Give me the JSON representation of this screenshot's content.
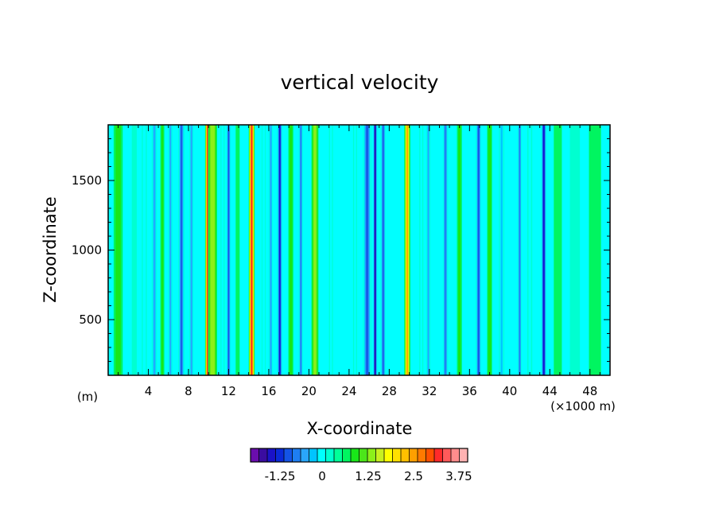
{
  "chart_data": {
    "type": "heatmap",
    "title": "vertical velocity",
    "xlabel": "X-coordinate",
    "ylabel": "Z-coordinate",
    "x_unit_left": "(m)",
    "x_unit_right": "(×1000 m)",
    "xlim": [
      0,
      50
    ],
    "ylim": [
      100,
      1900
    ],
    "x_ticks": [
      4,
      8,
      12,
      16,
      20,
      24,
      28,
      32,
      36,
      40,
      44,
      48
    ],
    "y_ticks": [
      500,
      1000,
      1500
    ],
    "features": [
      {
        "x": 1.0,
        "width": 0.9,
        "value": 0.6
      },
      {
        "x": 2.6,
        "width": 0.5,
        "value": -0.3
      },
      {
        "x": 3.6,
        "width": 0.5,
        "value": -0.6
      },
      {
        "x": 4.6,
        "width": 0.5,
        "value": -1.0
      },
      {
        "x": 5.4,
        "width": 0.4,
        "value": 0.5
      },
      {
        "x": 6.2,
        "width": 0.4,
        "value": -1.0
      },
      {
        "x": 7.3,
        "width": 0.6,
        "value": -1.5
      },
      {
        "x": 8.3,
        "width": 0.4,
        "value": -1.1
      },
      {
        "x": 9.9,
        "width": 0.5,
        "value": 3.2
      },
      {
        "x": 10.4,
        "width": 0.9,
        "value": 1.4
      },
      {
        "x": 11.4,
        "width": 0.4,
        "value": -0.6
      },
      {
        "x": 12.0,
        "width": 0.4,
        "value": -1.7
      },
      {
        "x": 12.9,
        "width": 0.4,
        "value": 0.3
      },
      {
        "x": 14.3,
        "width": 0.6,
        "value": 3.2
      },
      {
        "x": 15.5,
        "width": 0.4,
        "value": -0.7
      },
      {
        "x": 16.2,
        "width": 0.4,
        "value": -1.1
      },
      {
        "x": 17.1,
        "width": 0.5,
        "value": -2.0
      },
      {
        "x": 18.2,
        "width": 0.5,
        "value": 0.6
      },
      {
        "x": 19.2,
        "width": 0.4,
        "value": -1.4
      },
      {
        "x": 20.6,
        "width": 0.7,
        "value": 1.2
      },
      {
        "x": 22.2,
        "width": 0.4,
        "value": -0.5
      },
      {
        "x": 23.4,
        "width": 0.4,
        "value": 0.2
      },
      {
        "x": 24.6,
        "width": 0.4,
        "value": -0.5
      },
      {
        "x": 25.8,
        "width": 0.8,
        "value": -1.6
      },
      {
        "x": 26.6,
        "width": 0.4,
        "value": -2.4
      },
      {
        "x": 27.4,
        "width": 0.5,
        "value": -1.5
      },
      {
        "x": 29.8,
        "width": 0.6,
        "value": 2.3
      },
      {
        "x": 31.2,
        "width": 0.4,
        "value": -0.5
      },
      {
        "x": 31.9,
        "width": 0.4,
        "value": -1.0
      },
      {
        "x": 33.6,
        "width": 0.5,
        "value": -1.4
      },
      {
        "x": 35.0,
        "width": 0.5,
        "value": 0.5
      },
      {
        "x": 36.9,
        "width": 0.5,
        "value": -1.7
      },
      {
        "x": 38.0,
        "width": 0.5,
        "value": 0.7
      },
      {
        "x": 39.2,
        "width": 0.5,
        "value": -0.8
      },
      {
        "x": 41.0,
        "width": 0.4,
        "value": -1.4
      },
      {
        "x": 42.0,
        "width": 0.5,
        "value": -0.5
      },
      {
        "x": 43.4,
        "width": 0.5,
        "value": -2.1
      },
      {
        "x": 44.8,
        "width": 0.8,
        "value": 0.4
      },
      {
        "x": 46.5,
        "width": 1.0,
        "value": -0.4
      },
      {
        "x": 48.5,
        "width": 1.2,
        "value": 0.3
      }
    ],
    "colorbar": {
      "colors": [
        "#6a0dad",
        "#3a0ca0",
        "#1a12c8",
        "#0a2ad8",
        "#1454e6",
        "#1e7ef2",
        "#2aa6fa",
        "#00c4ff",
        "#00ffff",
        "#00ffd0",
        "#00ff99",
        "#00f560",
        "#19e619",
        "#4ce61a",
        "#8cf01a",
        "#c8f020",
        "#ffff00",
        "#ffe000",
        "#ffc000",
        "#ff9f00",
        "#ff7a00",
        "#ff5000",
        "#ff2a2a",
        "#ff5a5a",
        "#ff8c8c",
        "#ffb2b2"
      ],
      "tick_labels": [
        "-1.25",
        "0",
        "1.25",
        "2.5",
        "3.75"
      ],
      "vmin": -2.5,
      "vmax": 4.0
    }
  }
}
